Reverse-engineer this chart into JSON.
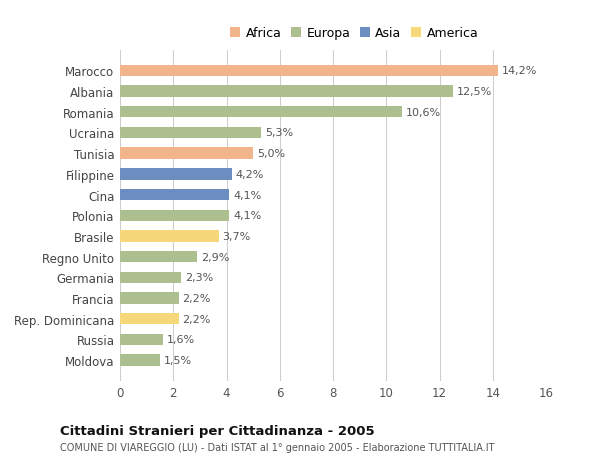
{
  "countries": [
    "Marocco",
    "Albania",
    "Romania",
    "Ucraina",
    "Tunisia",
    "Filippine",
    "Cina",
    "Polonia",
    "Brasile",
    "Regno Unito",
    "Germania",
    "Francia",
    "Rep. Dominicana",
    "Russia",
    "Moldova"
  ],
  "values": [
    14.2,
    12.5,
    10.6,
    5.3,
    5.0,
    4.2,
    4.1,
    4.1,
    3.7,
    2.9,
    2.3,
    2.2,
    2.2,
    1.6,
    1.5
  ],
  "labels": [
    "14,2%",
    "12,5%",
    "10,6%",
    "5,3%",
    "5,0%",
    "4,2%",
    "4,1%",
    "4,1%",
    "3,7%",
    "2,9%",
    "2,3%",
    "2,2%",
    "2,2%",
    "1,6%",
    "1,5%"
  ],
  "continents": [
    "Africa",
    "Europa",
    "Europa",
    "Europa",
    "Africa",
    "Asia",
    "Asia",
    "Europa",
    "America",
    "Europa",
    "Europa",
    "Europa",
    "America",
    "Europa",
    "Europa"
  ],
  "colors": {
    "Africa": "#F2B48A",
    "Europa": "#ADBF8E",
    "Asia": "#6B8DBF",
    "America": "#F5D87A"
  },
  "legend_order": [
    "Africa",
    "Europa",
    "Asia",
    "America"
  ],
  "title": "Cittadini Stranieri per Cittadinanza - 2005",
  "subtitle": "COMUNE DI VIAREGGIO (LU) - Dati ISTAT al 1° gennaio 2005 - Elaborazione TUTTITALIA.IT",
  "xlim": [
    0,
    16
  ],
  "xticks": [
    0,
    2,
    4,
    6,
    8,
    10,
    12,
    14,
    16
  ],
  "background_color": "#ffffff",
  "grid_color": "#cccccc",
  "bar_height": 0.55
}
